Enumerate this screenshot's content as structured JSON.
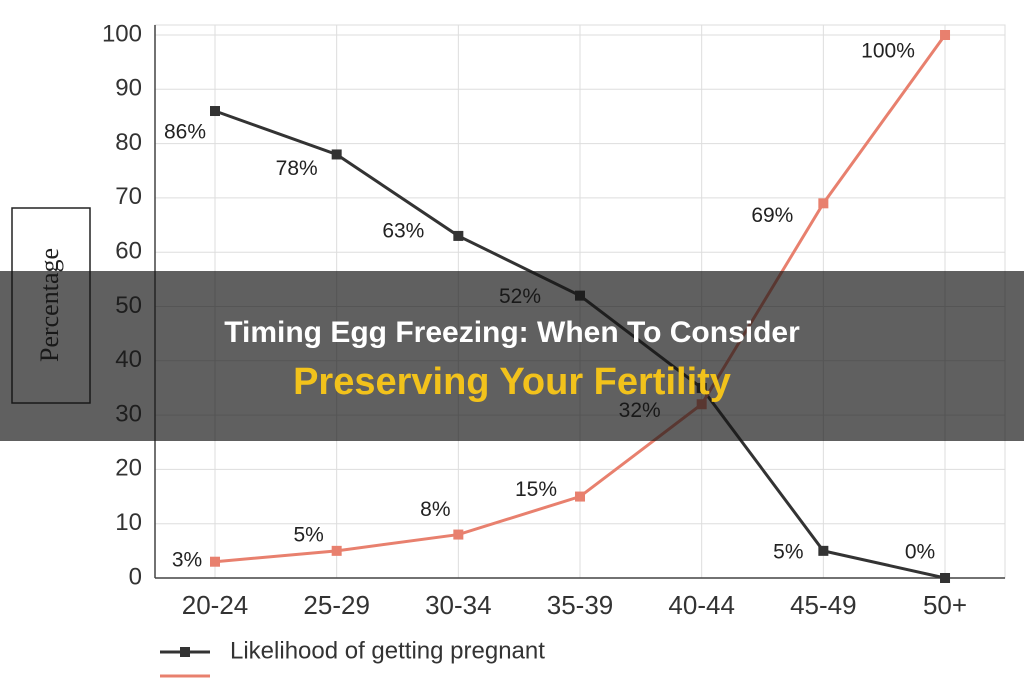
{
  "chart_data": {
    "type": "line",
    "y_label": "Percentage",
    "categories": [
      "20-24",
      "25-29",
      "30-34",
      "35-39",
      "40-44",
      "45-49",
      "50+"
    ],
    "series": [
      {
        "name": "Likelihood of getting pregnant",
        "color": "#333333",
        "marker": "square",
        "values": [
          86,
          78,
          63,
          52,
          35,
          5,
          0
        ],
        "value_labels": [
          "86%",
          "78%",
          "63%",
          "52%",
          null,
          "5%",
          "0%"
        ]
      },
      {
        "color": "#e8806e",
        "marker": "square",
        "values": [
          3,
          5,
          8,
          15,
          32,
          69,
          100
        ],
        "value_labels": [
          "3%",
          "5%",
          "8%",
          "15%",
          "32%",
          "69%",
          "100%"
        ]
      }
    ],
    "ylim": [
      0,
      100
    ],
    "yticks": [
      0,
      10,
      20,
      30,
      40,
      50,
      60,
      70,
      80,
      90,
      100
    ],
    "grid": true
  },
  "banner": {
    "line1": "Timing Egg Freezing: When To Consider",
    "line2": "Preserving Your Fertility"
  }
}
